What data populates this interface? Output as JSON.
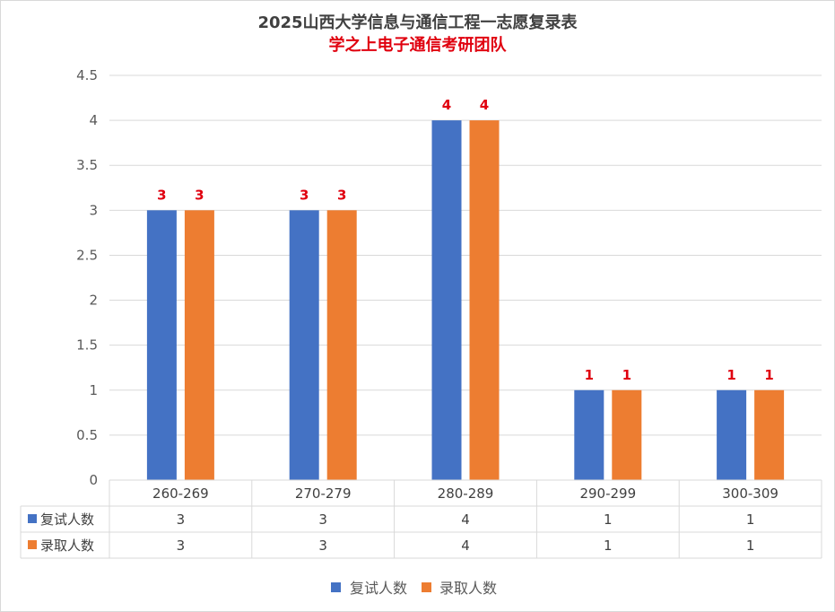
{
  "chart_data": {
    "type": "bar",
    "title": "2025山西大学信息与通信工程一志愿复录表",
    "subtitle": "学之上电子通信考研团队",
    "categories": [
      "260-269",
      "270-279",
      "280-289",
      "290-299",
      "300-309"
    ],
    "series": [
      {
        "name": "复试人数",
        "values": [
          3,
          3,
          4,
          1,
          1
        ],
        "color": "#4472c4"
      },
      {
        "name": "录取人数",
        "values": [
          3,
          3,
          4,
          1,
          1
        ],
        "color": "#ed7d31"
      }
    ],
    "ylim": [
      0,
      4.5
    ],
    "yticks": [
      "0",
      "0.5",
      "1",
      "1.5",
      "2",
      "2.5",
      "3",
      "3.5",
      "4",
      "4.5"
    ],
    "grid": true,
    "data_label_color": "#e0000f",
    "legend_position": "bottom",
    "data_table": true
  }
}
